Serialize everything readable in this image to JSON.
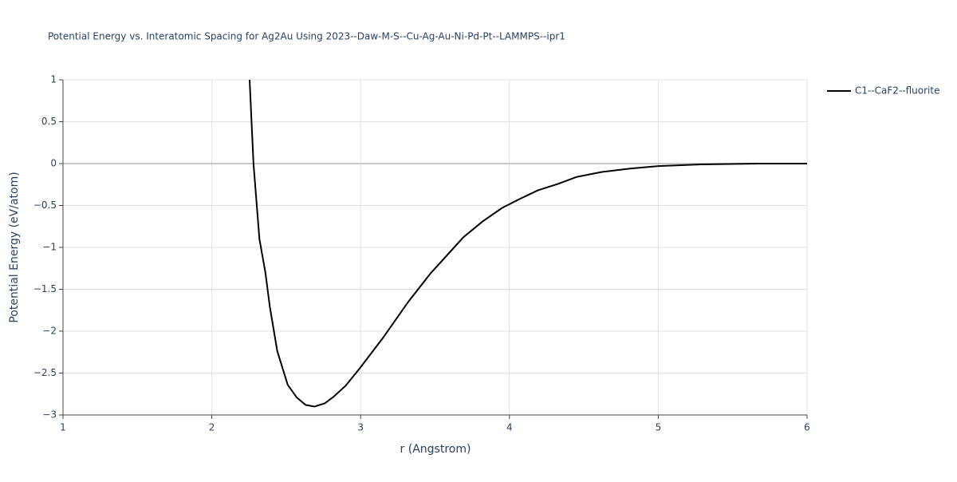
{
  "chart_data": {
    "type": "line",
    "title": "Potential Energy vs. Interatomic Spacing for Ag2Au Using 2023--Daw-M-S--Cu-Ag-Au-Ni-Pd-Pt--LAMMPS--ipr1",
    "x_label": "r (Angstrom)",
    "y_label": "Potential Energy (eV/atom)",
    "x": [
      2.254,
      2.28,
      2.32,
      2.36,
      2.39,
      2.44,
      2.51,
      2.57,
      2.63,
      2.69,
      2.76,
      2.82,
      2.9,
      3.0,
      3.15,
      3.32,
      3.47,
      3.69,
      3.82,
      3.95,
      4.06,
      4.19,
      4.33,
      4.45,
      4.62,
      4.81,
      5.0,
      5.29,
      5.67,
      6.0
    ],
    "series": [
      {
        "name": "C1--CaF2--fluorite",
        "color": "#000000",
        "values": [
          1.0,
          0.0,
          -0.9,
          -1.3,
          -1.71,
          -2.24,
          -2.64,
          -2.79,
          -2.88,
          -2.9,
          -2.86,
          -2.78,
          -2.65,
          -2.43,
          -2.08,
          -1.65,
          -1.31,
          -0.88,
          -0.69,
          -0.53,
          -0.43,
          -0.32,
          -0.24,
          -0.16,
          -0.1,
          -0.06,
          -0.03,
          -0.01,
          0.0,
          0.0
        ]
      }
    ],
    "xlim": [
      1,
      6
    ],
    "xticks": [
      1,
      2,
      3,
      4,
      5,
      6
    ],
    "ylim": [
      -3,
      1
    ],
    "yticks": [
      {
        "value": -3,
        "label": "−3"
      },
      {
        "value": -2.5,
        "label": "−2.5"
      },
      {
        "value": -2,
        "label": "−2"
      },
      {
        "value": -1.5,
        "label": "−1.5"
      },
      {
        "value": -1,
        "label": "−1"
      },
      {
        "value": -0.5,
        "label": "−0.5"
      },
      0,
      0.5,
      1
    ],
    "grid": true,
    "legend_position": "top-right"
  }
}
